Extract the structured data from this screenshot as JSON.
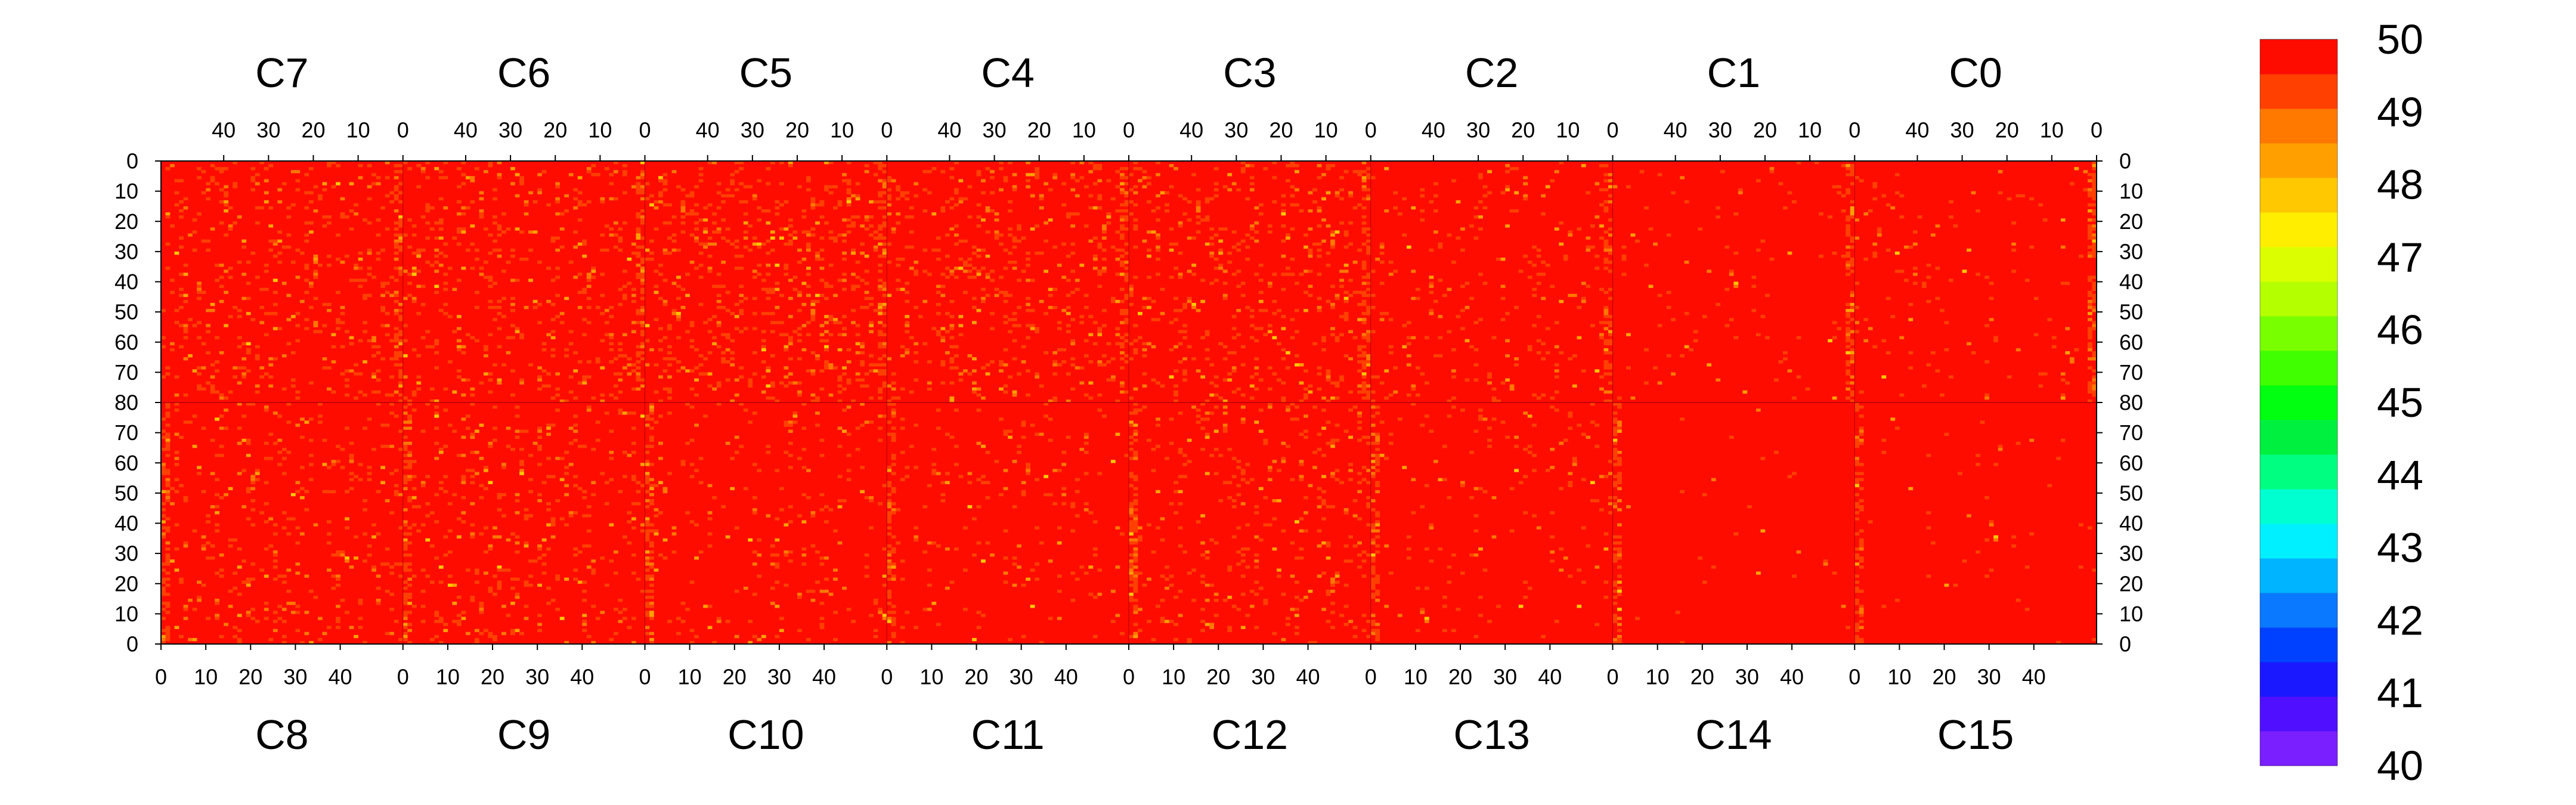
{
  "chart_data": {
    "type": "heatmap",
    "title": "",
    "chips_top": [
      "C7",
      "C6",
      "C5",
      "C4",
      "C3",
      "C2",
      "C1",
      "C0"
    ],
    "chips_bottom": [
      "C8",
      "C9",
      "C10",
      "C11",
      "C12",
      "C13",
      "C14",
      "C15"
    ],
    "columns_per_chip": 54,
    "rows_per_half": 80,
    "x_tick_labels_top": [
      "40",
      "30",
      "20",
      "10",
      "0"
    ],
    "x_tick_labels_bottom": [
      "0",
      "10",
      "20",
      "30",
      "40"
    ],
    "y_tick_labels_top_half": [
      "0",
      "10",
      "20",
      "30",
      "40",
      "50",
      "60",
      "70",
      "80"
    ],
    "y_tick_labels_bottom_half": [
      "70",
      "60",
      "50",
      "40",
      "30",
      "20",
      "10",
      "0"
    ],
    "colorbar": {
      "min": 40,
      "max": 50,
      "tick_labels": [
        "50",
        "49",
        "48",
        "47",
        "46",
        "45",
        "44",
        "43",
        "42",
        "41",
        "40"
      ]
    },
    "color_scale": [
      "#7a1fff",
      "#5010ff",
      "#1a18ff",
      "#0040ff",
      "#0a78ff",
      "#00b4ff",
      "#00f0ff",
      "#00ffd0",
      "#00ff80",
      "#00f040",
      "#00ff10",
      "#40ff00",
      "#78ff00",
      "#b4ff00",
      "#dcff00",
      "#ffee00",
      "#ffc800",
      "#ffa000",
      "#ff7800",
      "#ff4000",
      "#ff0c00"
    ],
    "dominant_value": 50,
    "grid": false,
    "legend_position": "right"
  }
}
